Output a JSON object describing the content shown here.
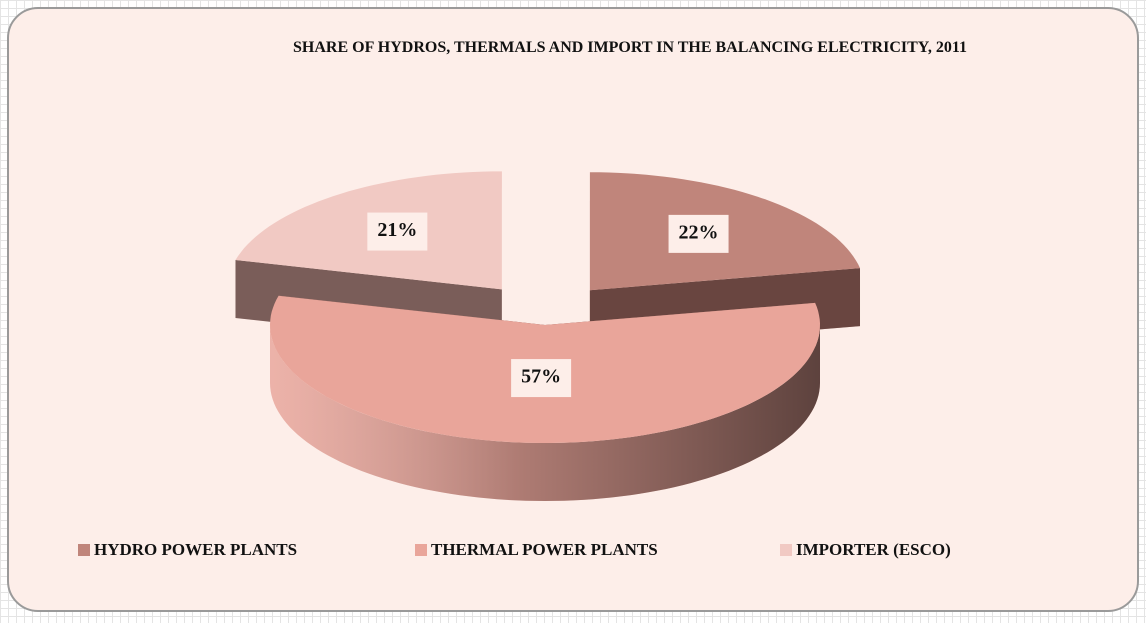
{
  "chart_data": {
    "type": "pie3d",
    "title": "SHARE OF HYDROS, THERMALS AND IMPORT IN THE BALANCING ELECTRICITY, 2011",
    "categories": [
      "HYDRO POWER PLANTS",
      "THERMAL POWER PLANTS",
      "IMPORTER (ESCO)"
    ],
    "values": [
      22,
      57,
      21
    ],
    "value_labels": [
      "22%",
      "57%",
      "21%"
    ],
    "colors": [
      "#c0857b",
      "#e9a59a",
      "#f1c9c3"
    ],
    "legend": "bottom"
  }
}
